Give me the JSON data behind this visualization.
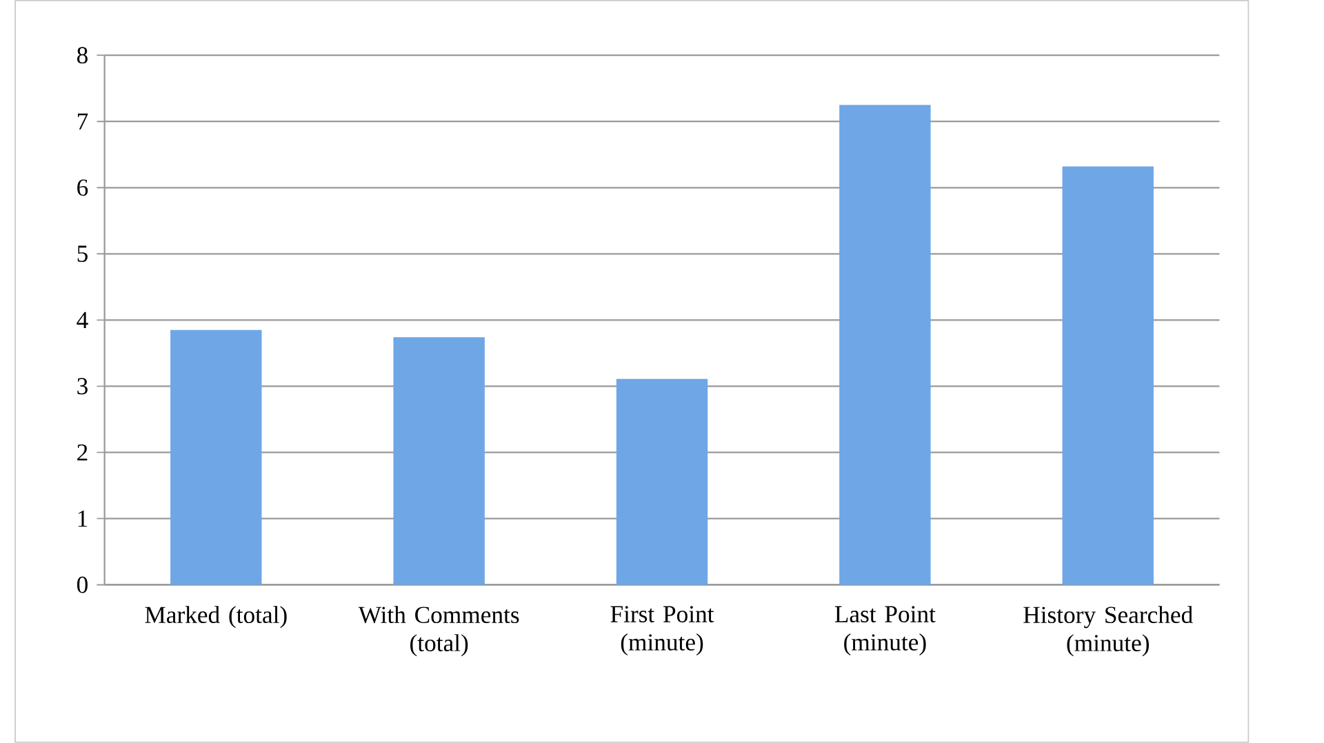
{
  "chart_data": {
    "type": "bar",
    "categories": [
      "Marked (total)",
      "With Comments (total)",
      "First Point (minute)",
      "Last Point (minute)",
      "History Searched (minute)"
    ],
    "values": [
      3.85,
      3.74,
      3.11,
      7.25,
      6.32
    ],
    "color": "#6fa6e6",
    "ylim": [
      0,
      8
    ],
    "yticks": [
      0,
      1,
      2,
      3,
      4,
      5,
      6,
      7,
      8
    ],
    "grid": "y"
  }
}
